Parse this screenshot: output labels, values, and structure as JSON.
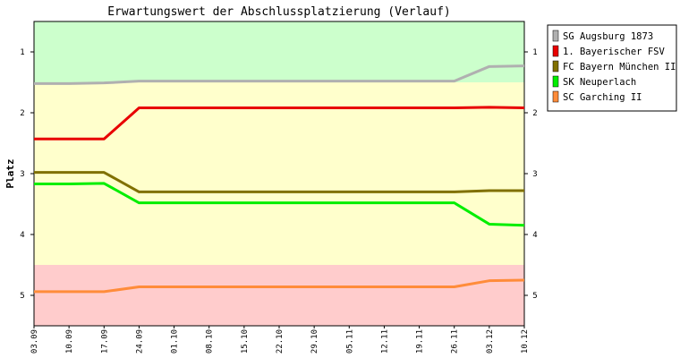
{
  "chart_data": {
    "type": "line",
    "title": "Erwartungswert der Abschlussplatzierung (Verlauf)",
    "xlabel": "",
    "ylabel": "Platz",
    "ylim": [
      5.5,
      0.5
    ],
    "y_inverted": true,
    "yticks": [
      1,
      2,
      3,
      4,
      5
    ],
    "categories": [
      "03.09",
      "10.09",
      "17.09",
      "24.09",
      "01.10",
      "08.10",
      "15.10",
      "22.10",
      "29.10",
      "05.11",
      "12.11",
      "19.11",
      "26.11",
      "03.12",
      "10.12"
    ],
    "bands": [
      {
        "from": 0.5,
        "to": 1.5,
        "color": "#ccffcc"
      },
      {
        "from": 1.5,
        "to": 4.5,
        "color": "#ffffcc"
      },
      {
        "from": 4.5,
        "to": 5.5,
        "color": "#ffcccc"
      }
    ],
    "legend_position": "right",
    "series": [
      {
        "name": "SG Augsburg 1873",
        "color": "#b0b0b0",
        "values": [
          1.52,
          1.52,
          1.51,
          1.48,
          1.48,
          1.48,
          1.48,
          1.48,
          1.48,
          1.48,
          1.48,
          1.48,
          1.48,
          1.24,
          1.23
        ]
      },
      {
        "name": "1. Bayerischer FSV",
        "color": "#e80000",
        "values": [
          2.43,
          2.43,
          2.43,
          1.92,
          1.92,
          1.92,
          1.92,
          1.92,
          1.92,
          1.92,
          1.92,
          1.92,
          1.92,
          1.91,
          1.92
        ]
      },
      {
        "name": "FC Bayern München II",
        "color": "#807000",
        "values": [
          2.98,
          2.98,
          2.98,
          3.3,
          3.3,
          3.3,
          3.3,
          3.3,
          3.3,
          3.3,
          3.3,
          3.3,
          3.3,
          3.28,
          3.28
        ]
      },
      {
        "name": "SK Neuperlach",
        "color": "#00ee00",
        "values": [
          3.17,
          3.17,
          3.16,
          3.48,
          3.48,
          3.48,
          3.48,
          3.48,
          3.48,
          3.48,
          3.48,
          3.48,
          3.48,
          3.83,
          3.85
        ]
      },
      {
        "name": "SC Garching II",
        "color": "#ff8c3a",
        "values": [
          4.94,
          4.94,
          4.94,
          4.86,
          4.86,
          4.86,
          4.86,
          4.86,
          4.86,
          4.86,
          4.86,
          4.86,
          4.86,
          4.76,
          4.75
        ]
      }
    ]
  }
}
